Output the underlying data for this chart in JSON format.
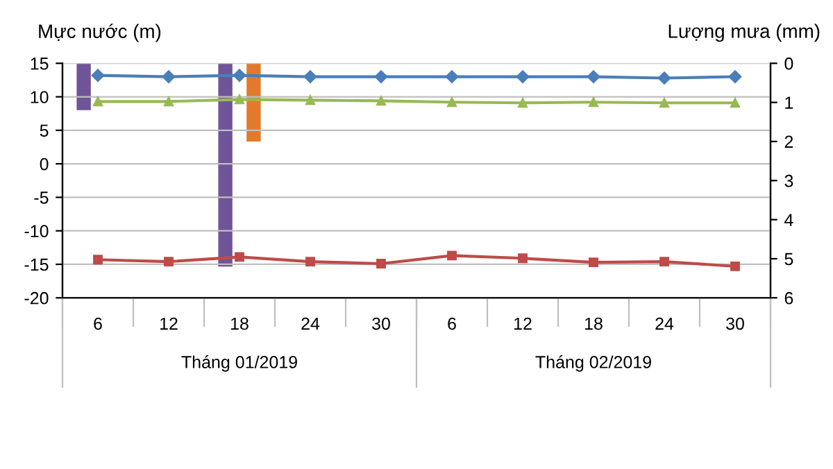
{
  "chart_data": {
    "type": "line",
    "ylabel": "Mực nước (m)",
    "y2label": "Lượng mưa (mm)",
    "categories": [
      "6",
      "12",
      "18",
      "24",
      "30",
      "6",
      "12",
      "18",
      "24",
      "30"
    ],
    "annotations": [
      "Tháng 01/2019",
      "Tháng 02/2019"
    ],
    "series": [
      {
        "type": "bar",
        "axis": "y2",
        "color": "#6f5597",
        "values": [
          1.2,
          null,
          5.2,
          null,
          null,
          null,
          null,
          null,
          null,
          null
        ]
      },
      {
        "type": "bar",
        "axis": "y2",
        "color": "#31859c",
        "values": [
          null,
          null,
          null,
          null,
          null,
          null,
          null,
          null,
          null,
          null
        ]
      },
      {
        "type": "bar",
        "axis": "y2",
        "color": "#e3792b",
        "values": [
          null,
          null,
          2.0,
          null,
          null,
          null,
          null,
          null,
          null,
          null
        ]
      },
      {
        "color": "#4a7ebb",
        "marker": "diamond",
        "values": [
          13.2,
          13.0,
          13.2,
          13.0,
          13.0,
          13.0,
          13.0,
          13.0,
          12.8,
          13.0
        ]
      },
      {
        "color": "#be4b48",
        "marker": "square",
        "values": [
          -14.3,
          -14.6,
          -13.9,
          -14.6,
          -14.9,
          -13.7,
          -14.1,
          -14.7,
          -14.6,
          -15.3
        ]
      },
      {
        "color": "#98b954",
        "marker": "triangle",
        "values": [
          9.3,
          9.3,
          9.6,
          9.5,
          9.4,
          9.2,
          9.1,
          9.2,
          9.1,
          9.1
        ]
      }
    ],
    "ylim": [
      -20,
      15
    ],
    "yticks": [
      -20,
      -15,
      -10,
      -5,
      0,
      5,
      10,
      15
    ],
    "y2lim": [
      6,
      0
    ],
    "y2ticks": [
      0,
      1,
      2,
      3,
      4,
      5,
      6
    ],
    "grid": "y"
  }
}
